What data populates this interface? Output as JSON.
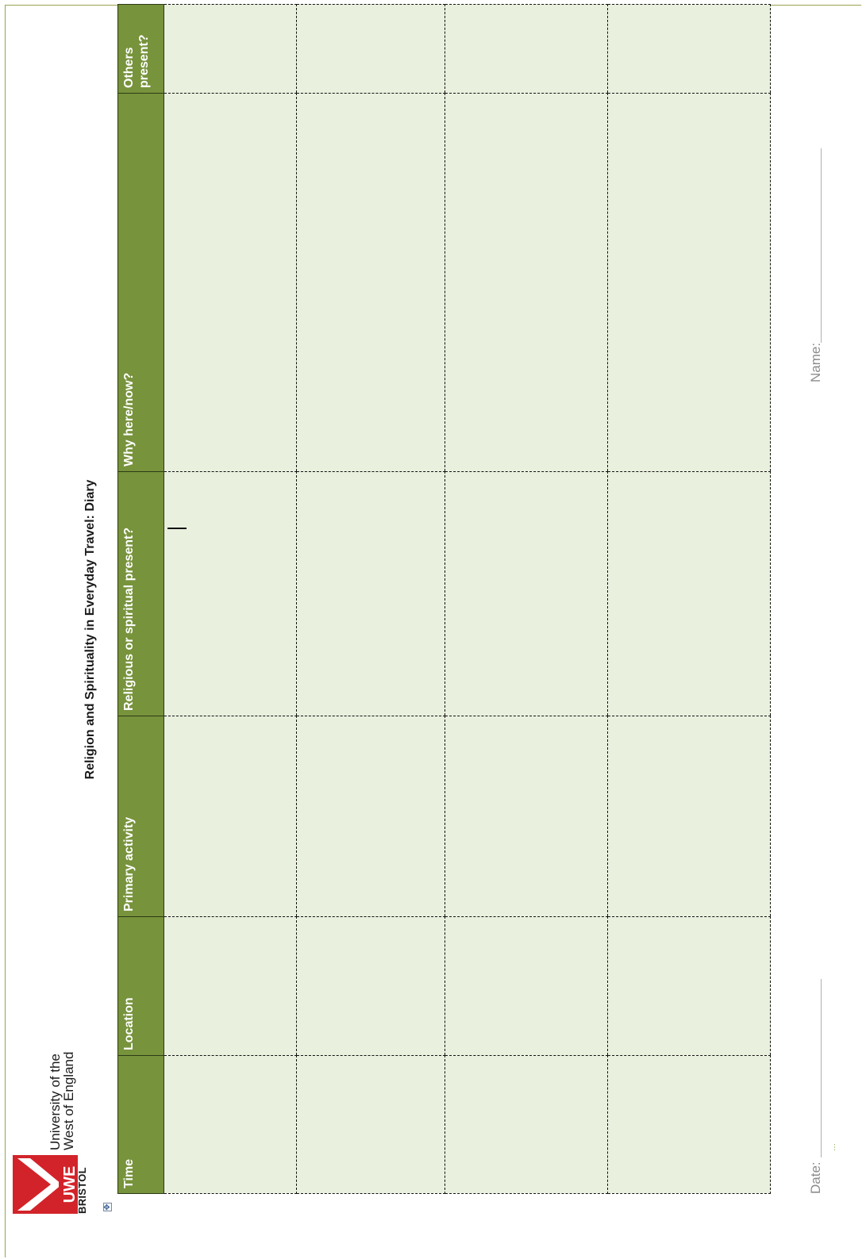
{
  "logo": {
    "mark_text": "UWE",
    "bristol": "BRISTOL",
    "line1": "University of the",
    "line2": "West of England"
  },
  "title": "Religion and Spirituality in Everyday Travel: Diary",
  "table": {
    "headers": [
      "Time",
      "Location",
      "Primary activity",
      "Religious or spiritual present?",
      "Why here/now?",
      "Others present?"
    ],
    "rows": [
      [
        "",
        "",
        "",
        "",
        "",
        ""
      ],
      [
        "",
        "",
        "",
        "",
        "",
        ""
      ],
      [
        "",
        "",
        "",
        "",
        "",
        ""
      ],
      [
        "",
        "",
        "",
        "",
        "",
        ""
      ]
    ]
  },
  "footer": {
    "date_label": "Date:",
    "name_label": "Name:"
  },
  "colors": {
    "header_bg": "#77933c",
    "cell_bg": "#e9f0de",
    "logo_red": "#d2232a"
  }
}
